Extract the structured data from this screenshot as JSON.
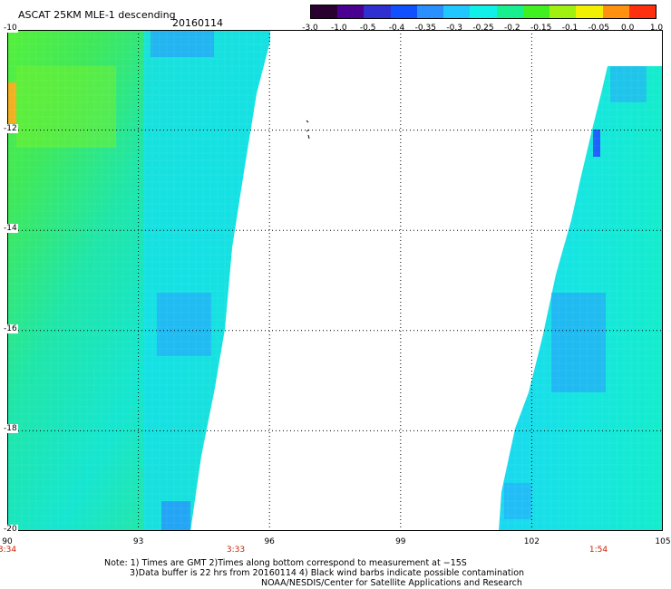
{
  "header": {
    "title": "ASCAT 25KM MLE-1 descending",
    "date": "20160114"
  },
  "colorbar": {
    "labels": [
      "-3.0",
      "-1.0",
      "-0.5",
      "-0.4",
      "-0.35",
      "-0.3",
      "-0.25",
      "-0.2",
      "-0.15",
      "-0.1",
      "-0.05",
      "0.0",
      "1.0"
    ],
    "colors": [
      "#2a0030",
      "#4a0090",
      "#3030d0",
      "#1050ff",
      "#2a90ff",
      "#20c8ff",
      "#10f0e8",
      "#18f090",
      "#40f020",
      "#a0f010",
      "#f0f000",
      "#ff9010",
      "#ff3010"
    ]
  },
  "map": {
    "lon_range": [
      90,
      105
    ],
    "lat_range": [
      -20,
      -10
    ],
    "x_ticks": [
      "90",
      "93",
      "96",
      "99",
      "102",
      "105"
    ],
    "y_ticks": [
      "-10",
      "-12",
      "-14",
      "-16",
      "-18",
      "-20"
    ],
    "times": [
      "3:34",
      "3:33",
      "1:54"
    ],
    "colors": {
      "swath_blue": "#1a8cff",
      "swath_cyan": "#15e6e6",
      "swath_green": "#22e87a",
      "swath_lime": "#55f03a",
      "grid": "#000000",
      "time_label": "#cc2200"
    }
  },
  "footer": {
    "line1": "Note: 1) Times are GMT 2)Times along bottom correspond to measurement at −15S",
    "line2": "3)Data buffer is 22 hrs from 20160114 4) Black wind barbs indicate possible contamination",
    "line3": "NOAA/NESDIS/Center for Satellite Applications and Research"
  }
}
